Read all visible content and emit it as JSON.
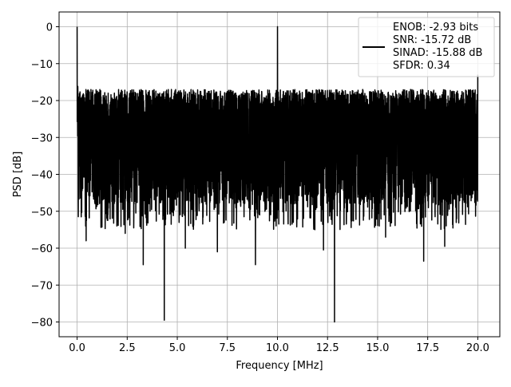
{
  "chart_data": {
    "type": "line",
    "xlabel": "Frequency [MHz]",
    "ylabel": "PSD [dB]",
    "xlim": [
      -0.9,
      21.1
    ],
    "ylim": [
      -84,
      4
    ],
    "x_ticks": [
      0.0,
      2.5,
      5.0,
      7.5,
      10.0,
      12.5,
      15.0,
      17.5,
      20.0
    ],
    "x_tick_labels": [
      "0.0",
      "2.5",
      "5.0",
      "7.5",
      "10.0",
      "12.5",
      "15.0",
      "17.5",
      "20.0"
    ],
    "y_ticks": [
      0,
      -10,
      -20,
      -30,
      -40,
      -50,
      -60,
      -70,
      -80
    ],
    "y_tick_labels": [
      "0",
      "−10",
      "−20",
      "−30",
      "−40",
      "−50",
      "−60",
      "−70",
      "−80"
    ],
    "grid": true,
    "legend_position": "top-right",
    "legend_entries": [
      "ENOB: -2.93 bits",
      "SNR: -15.72 dB",
      "SINAD: -15.88 dB",
      "SFDR: 0.34"
    ],
    "series": [
      {
        "color": "#000000",
        "x_range": [
          0,
          20
        ],
        "noise_floor_db": -31,
        "noise_upper_db": -17,
        "noise_lower_db": -48,
        "peaks": [
          {
            "x": 0.0,
            "y": 0
          },
          {
            "x": 10.0,
            "y": 0
          },
          {
            "x": 20.0,
            "y": -13
          }
        ],
        "dips": [
          {
            "x": 4.35,
            "y": -79.5
          },
          {
            "x": 12.85,
            "y": -80
          },
          {
            "x": 3.3,
            "y": -64.5
          },
          {
            "x": 8.9,
            "y": -64.5
          },
          {
            "x": 17.3,
            "y": -63.5
          },
          {
            "x": 0.45,
            "y": -58
          },
          {
            "x": 2.4,
            "y": -56
          },
          {
            "x": 5.4,
            "y": -60
          },
          {
            "x": 7.0,
            "y": -61
          },
          {
            "x": 12.3,
            "y": -60.5
          },
          {
            "x": 15.4,
            "y": -57
          },
          {
            "x": 18.35,
            "y": -59.5
          }
        ]
      }
    ]
  }
}
